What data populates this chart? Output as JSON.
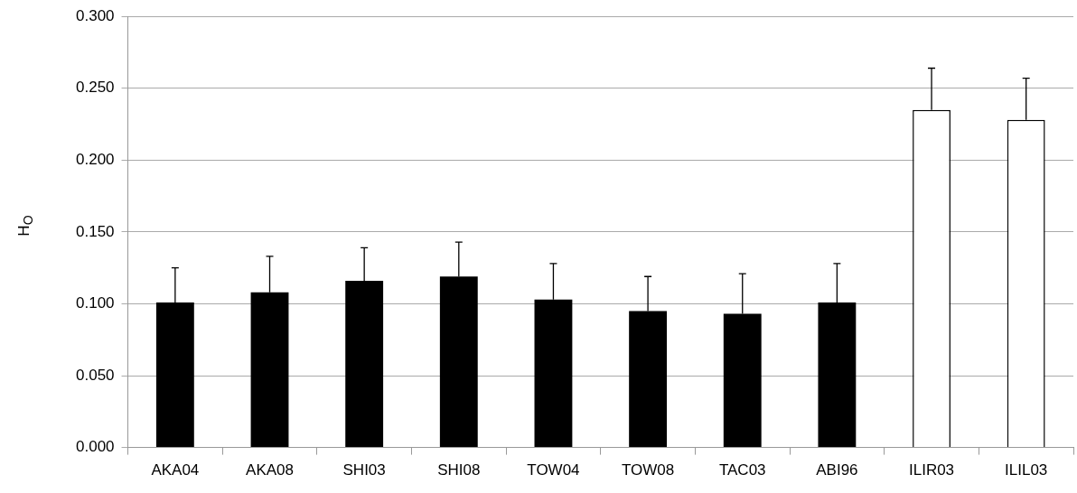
{
  "chart_data": {
    "type": "bar",
    "ylabel": "H$_{O}$",
    "categories": [
      "AKA04",
      "AKA08",
      "SHI03",
      "SHI08",
      "TOW04",
      "TOW08",
      "TAC03",
      "ABI96",
      "ILIR03",
      "ILIL03"
    ],
    "values": [
      0.101,
      0.108,
      0.116,
      0.119,
      0.103,
      0.095,
      0.093,
      0.101,
      0.235,
      0.228
    ],
    "errors": [
      [
        0.101,
        0.125
      ],
      [
        0.108,
        0.133
      ],
      [
        0.116,
        0.139
      ],
      [
        0.119,
        0.143
      ],
      [
        0.103,
        0.128
      ],
      [
        0.095,
        0.119
      ],
      [
        0.093,
        0.121
      ],
      [
        0.101,
        0.128
      ],
      [
        0.235,
        0.264
      ],
      [
        0.228,
        0.257
      ]
    ],
    "colors": [
      "#000000",
      "#000000",
      "#000000",
      "#000000",
      "#000000",
      "#000000",
      "#000000",
      "#000000",
      "#ffffff",
      "#ffffff"
    ],
    "ylim": [
      0,
      0.3
    ],
    "yticks": [
      {
        "value": 0,
        "label": "0.000"
      },
      {
        "value": 0.05,
        "label": "0.050"
      },
      {
        "value": 0.1,
        "label": "0.100"
      },
      {
        "value": 0.15,
        "label": "0.150"
      },
      {
        "value": 0.2,
        "label": "0.200"
      },
      {
        "value": 0.25,
        "label": "0.250"
      },
      {
        "value": 0.3,
        "label": "0.300"
      }
    ],
    "grid": "y",
    "legend": false
  }
}
